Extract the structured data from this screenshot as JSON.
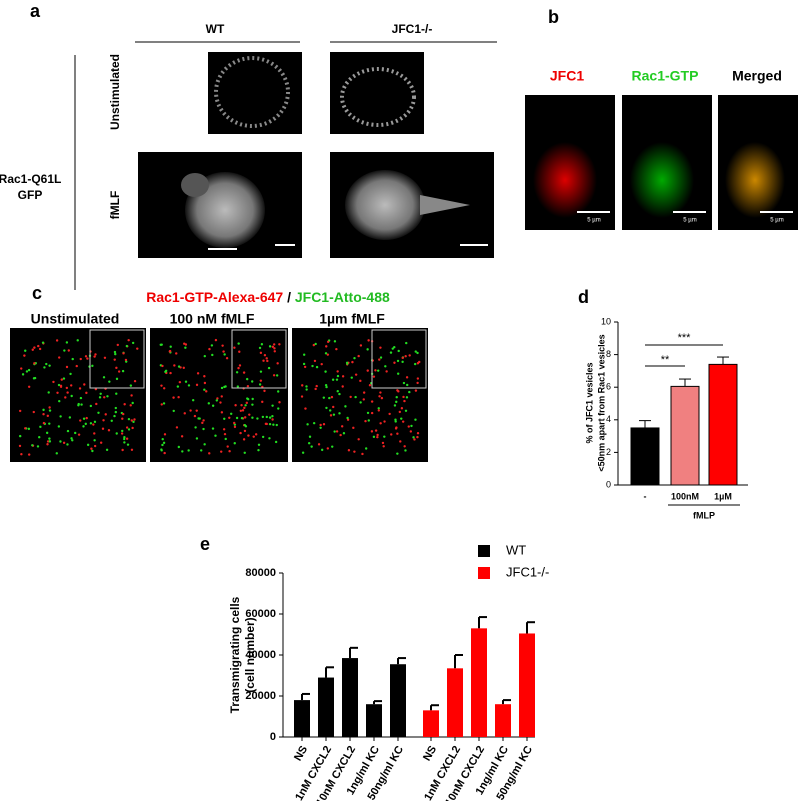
{
  "panel_a": {
    "label": "a",
    "columns": [
      "WT",
      "JFC1-/-"
    ],
    "rows": [
      "Unstimulated",
      "fMLF"
    ],
    "row_group": [
      "Rac1-Q61L",
      "GFP"
    ]
  },
  "panel_b": {
    "label": "b",
    "channels": [
      "JFC1",
      "Rac1-GTP",
      "Merged"
    ],
    "scale_label": "5 µm"
  },
  "panel_c": {
    "label": "c",
    "title_parts": [
      "Rac1-GTP-Alexa-647",
      " / ",
      "JFC1-Atto-488"
    ],
    "conditions": [
      "Unstimulated",
      "100 nM fMLF",
      "1µm fMLF"
    ]
  },
  "chart_data": [
    {
      "type": "bar",
      "panel_label": "d",
      "y_label": [
        "% of JFC1 vesicles",
        "<50nm apart from Rac1 vesicles"
      ],
      "categories": [
        "-",
        "100nM",
        "1µM"
      ],
      "group_label": "fMLP",
      "values": [
        3.5,
        6.05,
        7.4
      ],
      "errors": [
        0.45,
        0.45,
        0.45
      ],
      "colors": [
        "#000000",
        "#f08080",
        "#ff0000"
      ],
      "annotations": [
        "**",
        "***"
      ],
      "ylim": [
        0,
        10
      ],
      "yticks": [
        0,
        2,
        4,
        6,
        8,
        10
      ]
    },
    {
      "type": "grouped-bar",
      "panel_label": "e",
      "y_label": [
        "Transmigrating cells",
        "(cell number)"
      ],
      "categories": [
        "NS",
        "1nM CXCL2",
        "10nM CXCL2",
        "1ng/ml KC",
        "50ng/ml KC"
      ],
      "series": [
        {
          "name": "WT",
          "color": "#000000",
          "values": [
            18000,
            29000,
            38500,
            16000,
            35500
          ],
          "errors": [
            3000,
            5000,
            5000,
            1500,
            3000
          ]
        },
        {
          "name": "JFC1-/-",
          "color": "#ff0000",
          "values": [
            13000,
            33500,
            53000,
            16000,
            50500
          ],
          "errors": [
            2500,
            6500,
            5500,
            2000,
            5500
          ]
        }
      ],
      "ylim": [
        0,
        80000
      ],
      "yticks": [
        0,
        20000,
        40000,
        60000,
        80000
      ]
    }
  ]
}
